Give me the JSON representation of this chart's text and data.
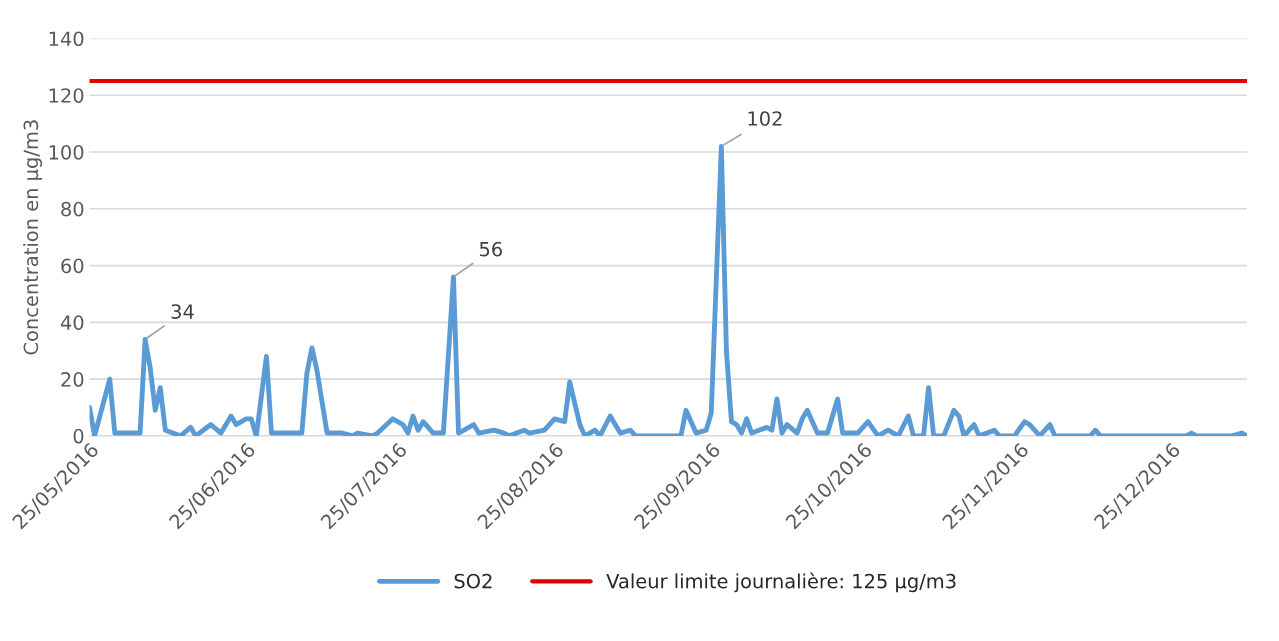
{
  "chart_data": {
    "type": "line",
    "ylabel": "Concentration en µg/m3",
    "x": [
      "2016-05-25",
      "2016-05-26",
      "2016-05-29",
      "2016-05-30",
      "2016-06-04",
      "2016-06-05",
      "2016-06-06",
      "2016-06-07",
      "2016-06-08",
      "2016-06-09",
      "2016-06-12",
      "2016-06-14",
      "2016-06-15",
      "2016-06-18",
      "2016-06-20",
      "2016-06-22",
      "2016-06-23",
      "2016-06-25",
      "2016-06-26",
      "2016-06-27",
      "2016-06-29",
      "2016-06-30",
      "2016-07-06",
      "2016-07-07",
      "2016-07-08",
      "2016-07-09",
      "2016-07-11",
      "2016-07-14",
      "2016-07-16",
      "2016-07-17",
      "2016-07-20",
      "2016-07-21",
      "2016-07-24",
      "2016-07-26",
      "2016-07-27",
      "2016-07-28",
      "2016-07-29",
      "2016-07-30",
      "2016-08-01",
      "2016-08-03",
      "2016-08-05",
      "2016-08-06",
      "2016-08-09",
      "2016-08-10",
      "2016-08-13",
      "2016-08-15",
      "2016-08-16",
      "2016-08-19",
      "2016-08-20",
      "2016-08-23",
      "2016-08-25",
      "2016-08-27",
      "2016-08-28",
      "2016-08-30",
      "2016-08-31",
      "2016-09-02",
      "2016-09-03",
      "2016-09-05",
      "2016-09-07",
      "2016-09-09",
      "2016-09-10",
      "2016-09-19",
      "2016-09-20",
      "2016-09-22",
      "2016-09-24",
      "2016-09-25",
      "2016-09-27",
      "2016-09-28",
      "2016-09-29",
      "2016-09-30",
      "2016-10-01",
      "2016-10-02",
      "2016-10-03",
      "2016-10-06",
      "2016-10-07",
      "2016-10-08",
      "2016-10-09",
      "2016-10-10",
      "2016-10-12",
      "2016-10-13",
      "2016-10-14",
      "2016-10-16",
      "2016-10-18",
      "2016-10-20",
      "2016-10-21",
      "2016-10-24",
      "2016-10-26",
      "2016-10-28",
      "2016-10-30",
      "2016-11-01",
      "2016-11-03",
      "2016-11-04",
      "2016-11-06",
      "2016-11-07",
      "2016-11-08",
      "2016-11-10",
      "2016-11-12",
      "2016-11-13",
      "2016-11-14",
      "2016-11-16",
      "2016-11-17",
      "2016-11-20",
      "2016-11-21",
      "2016-11-24",
      "2016-11-26",
      "2016-11-27",
      "2016-11-29",
      "2016-12-01",
      "2016-12-02",
      "2016-12-09",
      "2016-12-10",
      "2016-12-11",
      "2016-12-28",
      "2016-12-29",
      "2016-12-30",
      "2017-01-06",
      "2017-01-08",
      "2017-01-09"
    ],
    "series": [
      {
        "name": "SO2",
        "color": "#5b9bd5",
        "values": [
          10,
          0,
          20,
          1,
          1,
          34,
          24,
          9,
          17,
          2,
          0,
          3,
          0,
          4,
          1,
          7,
          4,
          6,
          6,
          0,
          28,
          1,
          1,
          22,
          31,
          23,
          1,
          1,
          0,
          1,
          0,
          1,
          6,
          4,
          1,
          7,
          2,
          5,
          1,
          1,
          56,
          1,
          4,
          1,
          2,
          1,
          0,
          2,
          1,
          2,
          6,
          5,
          19,
          4,
          0,
          2,
          0,
          7,
          1,
          2,
          0,
          0,
          9,
          1,
          2,
          8,
          102,
          30,
          5,
          4,
          1,
          6,
          1,
          3,
          2,
          13,
          1,
          4,
          1,
          6,
          9,
          1,
          1,
          13,
          1,
          1,
          5,
          0,
          2,
          0,
          7,
          0,
          0,
          17,
          0,
          0,
          9,
          7,
          0,
          4,
          0,
          2,
          0,
          0,
          5,
          4,
          0,
          4,
          0,
          0,
          2,
          0,
          0,
          1,
          0,
          0,
          1,
          0
        ]
      }
    ],
    "ref_lines": [
      {
        "axis": "y",
        "value": 125,
        "label": "Valeur limite journalière: 125 µg/m3",
        "color": "#e00000",
        "line_style": "solid"
      }
    ],
    "annotations": [
      {
        "text": "34",
        "x": "2016-06-05",
        "y": 34
      },
      {
        "text": "56",
        "x": "2016-08-05",
        "y": 56
      },
      {
        "text": "102",
        "x": "2016-09-27",
        "y": 102
      }
    ],
    "xlim": [
      "2016-05-25",
      "2017-01-09"
    ],
    "xticks": [
      {
        "value": "2016-05-25",
        "label": "25/05/2016"
      },
      {
        "value": "2016-06-25",
        "label": "25/06/2016"
      },
      {
        "value": "2016-07-25",
        "label": "25/07/2016"
      },
      {
        "value": "2016-08-25",
        "label": "25/08/2016"
      },
      {
        "value": "2016-09-25",
        "label": "25/09/2016"
      },
      {
        "value": "2016-10-25",
        "label": "25/10/2016"
      },
      {
        "value": "2016-11-25",
        "label": "25/11/2016"
      },
      {
        "value": "2016-12-25",
        "label": "25/12/2016"
      }
    ],
    "ylim": [
      0,
      140
    ],
    "yticks": [
      0,
      20,
      40,
      60,
      80,
      100,
      120,
      140
    ],
    "grid": "y",
    "legend": "bottom",
    "marker": "none",
    "line_style": "solid"
  }
}
